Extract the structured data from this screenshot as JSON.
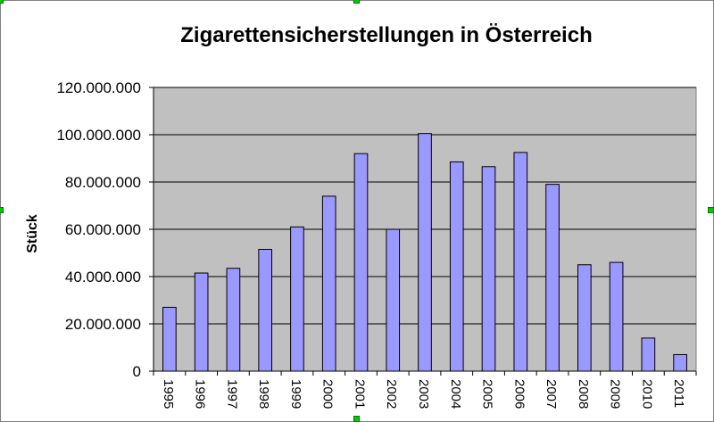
{
  "chart_data": {
    "type": "bar",
    "title": "Zigarettensicherstellungen in Österreich",
    "xlabel": "",
    "ylabel": "Stück",
    "categories": [
      "1995",
      "1996",
      "1997",
      "1998",
      "1999",
      "2000",
      "2001",
      "2002",
      "2003",
      "2004",
      "2005",
      "2006",
      "2007",
      "2008",
      "2009",
      "2010",
      "2011"
    ],
    "series": [
      {
        "values": [
          27000000,
          41500000,
          43500000,
          51500000,
          61000000,
          74000000,
          92000000,
          60000000,
          100500000,
          88500000,
          86500000,
          92500000,
          79000000,
          45000000,
          46000000,
          14000000,
          7000000
        ]
      }
    ],
    "ylim": [
      0,
      120000000
    ],
    "yticks": [
      "0",
      "20.000.000",
      "40.000.000",
      "60.000.000",
      "80.000.000",
      "100.000.000",
      "120.000.000"
    ],
    "grid": true,
    "legend": "none",
    "colors": {
      "bar_fill": "#9999ff",
      "bar_stroke": "#000000",
      "plot_background": "#c0c0c0",
      "gridline": "#000000",
      "selection_handle": "#00cc00"
    }
  }
}
